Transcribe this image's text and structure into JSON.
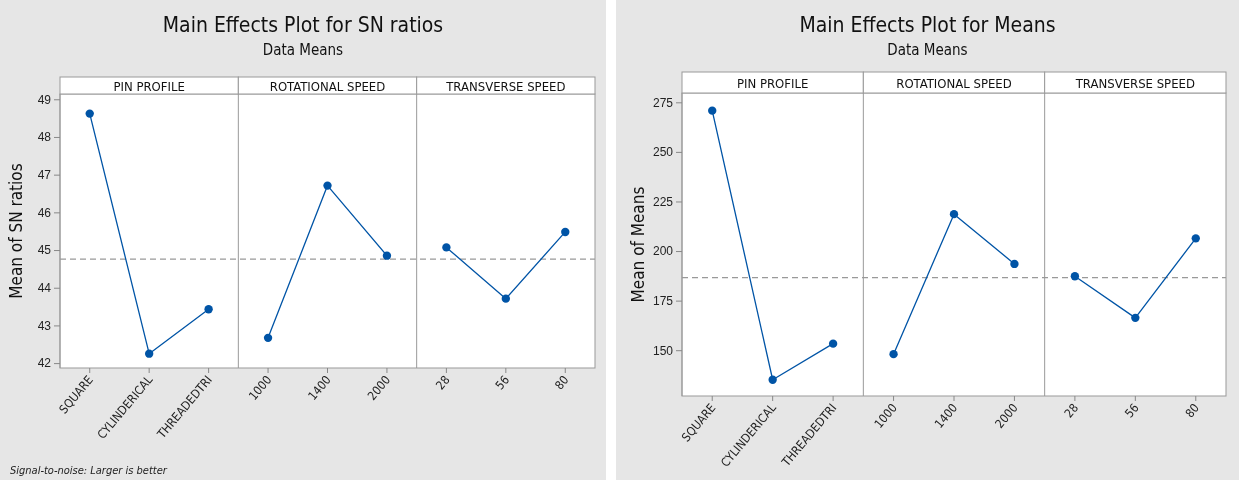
{
  "chart_data": [
    {
      "type": "line",
      "title": "Main Effects Plot for SN ratios",
      "subtitle": "Data Means",
      "ylabel": "Mean of SN ratios",
      "categories": [
        "SQUARE",
        "CYLINDERICAL",
        "THREADEDTRI",
        "1000",
        "1400",
        "2000",
        "28",
        "56",
        "80"
      ],
      "series": [
        {
          "color": "#0054a6",
          "values": [
            48.62,
            42.25,
            43.43,
            null,
            null,
            null,
            null,
            null,
            null
          ]
        },
        {
          "color": "#0054a6",
          "values": [
            null,
            null,
            null,
            42.67,
            46.71,
            44.85,
            null,
            null,
            null
          ]
        },
        {
          "color": "#0054a6",
          "values": [
            null,
            null,
            null,
            null,
            null,
            null,
            45.07,
            43.71,
            45.48
          ]
        }
      ],
      "ylim": [
        41.87,
        49.14
      ],
      "yticks": [
        42,
        43,
        44,
        45,
        46,
        47,
        48,
        49
      ],
      "ref_lines": [
        {
          "axis": "y",
          "value": 44.76,
          "color": "#999999",
          "line_style": "dashed"
        }
      ],
      "marker": "circle",
      "line_style": "solid",
      "annotations": [
        "PIN PROFILE",
        "ROTATIONAL SPEED",
        "TRANSVERSE SPEED",
        "Signal-to-noise: Larger is better"
      ]
    },
    {
      "type": "line",
      "title": "Main Effects Plot for Means",
      "subtitle": "Data Means",
      "ylabel": "Mean of Means",
      "categories": [
        "SQUARE",
        "CYLINDERICAL",
        "THREADEDTRI",
        "1000",
        "1400",
        "2000",
        "28",
        "56",
        "80"
      ],
      "series": [
        {
          "color": "#0054a6",
          "values": [
            270.8,
            135.1,
            153.3,
            null,
            null,
            null,
            null,
            null,
            null
          ]
        },
        {
          "color": "#0054a6",
          "values": [
            null,
            null,
            null,
            148.0,
            218.6,
            193.5,
            null,
            null,
            null
          ]
        },
        {
          "color": "#0054a6",
          "values": [
            null,
            null,
            null,
            null,
            null,
            null,
            187.3,
            166.3,
            206.4
          ]
        }
      ],
      "ylim": [
        126.9,
        279.7
      ],
      "yticks": [
        150,
        175,
        200,
        225,
        250,
        275
      ],
      "ref_lines": [
        {
          "axis": "y",
          "value": 186.6,
          "color": "#999999",
          "line_style": "dashed"
        }
      ],
      "marker": "circle",
      "line_style": "solid",
      "annotations": [
        "PIN PROFILE",
        "ROTATIONAL SPEED",
        "TRANSVERSE SPEED"
      ]
    }
  ]
}
